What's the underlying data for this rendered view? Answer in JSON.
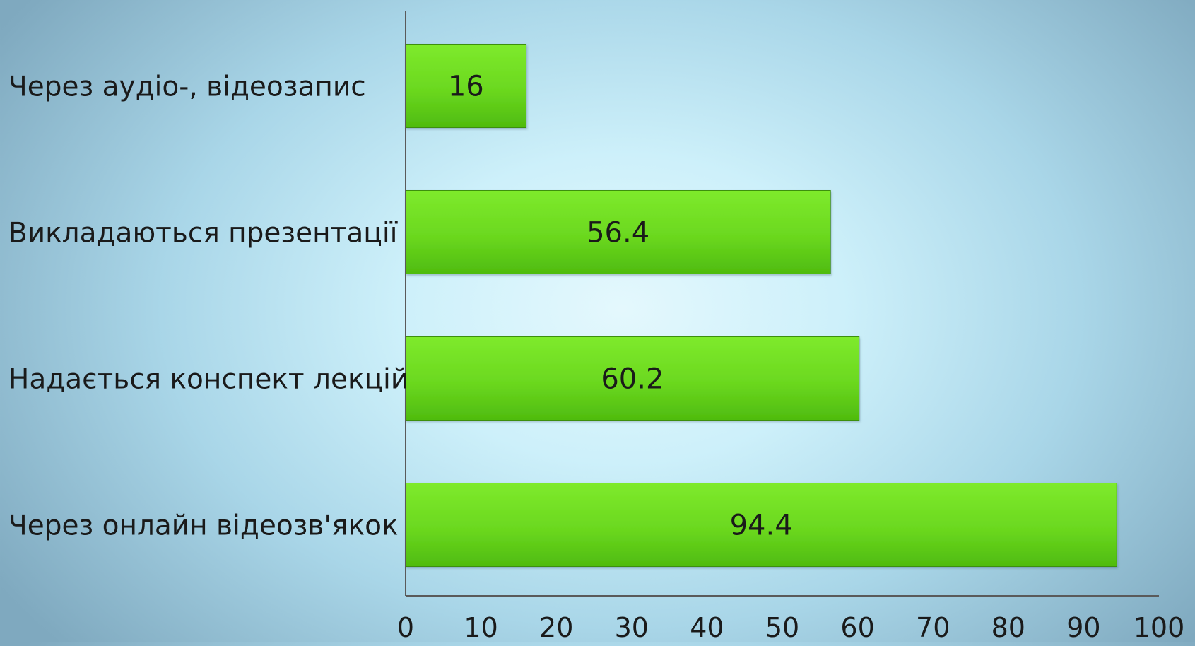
{
  "chart_data": {
    "type": "bar",
    "orientation": "horizontal",
    "title": "",
    "xlabel": "",
    "ylabel": "",
    "categories": [
      "Через аудіо-, відеозапис",
      "Викладаються презентації",
      "Надається конспект лекцій",
      "Через онлайн відеозв'якок"
    ],
    "values": [
      16,
      56.4,
      60.2,
      94.4
    ],
    "data_labels": [
      "16",
      "56.4",
      "60.2",
      "94.4"
    ],
    "xlim": [
      0,
      100
    ],
    "x_ticks": [
      "0",
      "10",
      "20",
      "30",
      "40",
      "50",
      "60",
      "70",
      "80",
      "90",
      "100"
    ],
    "grid": false,
    "legend": "none",
    "colors": {
      "bar_top": "#7eea2c",
      "bar_bottom": "#4fbb0f",
      "bar_edge": "#3d8f10",
      "axis": "#5a5a5a",
      "text": "#1a1a1a"
    }
  }
}
